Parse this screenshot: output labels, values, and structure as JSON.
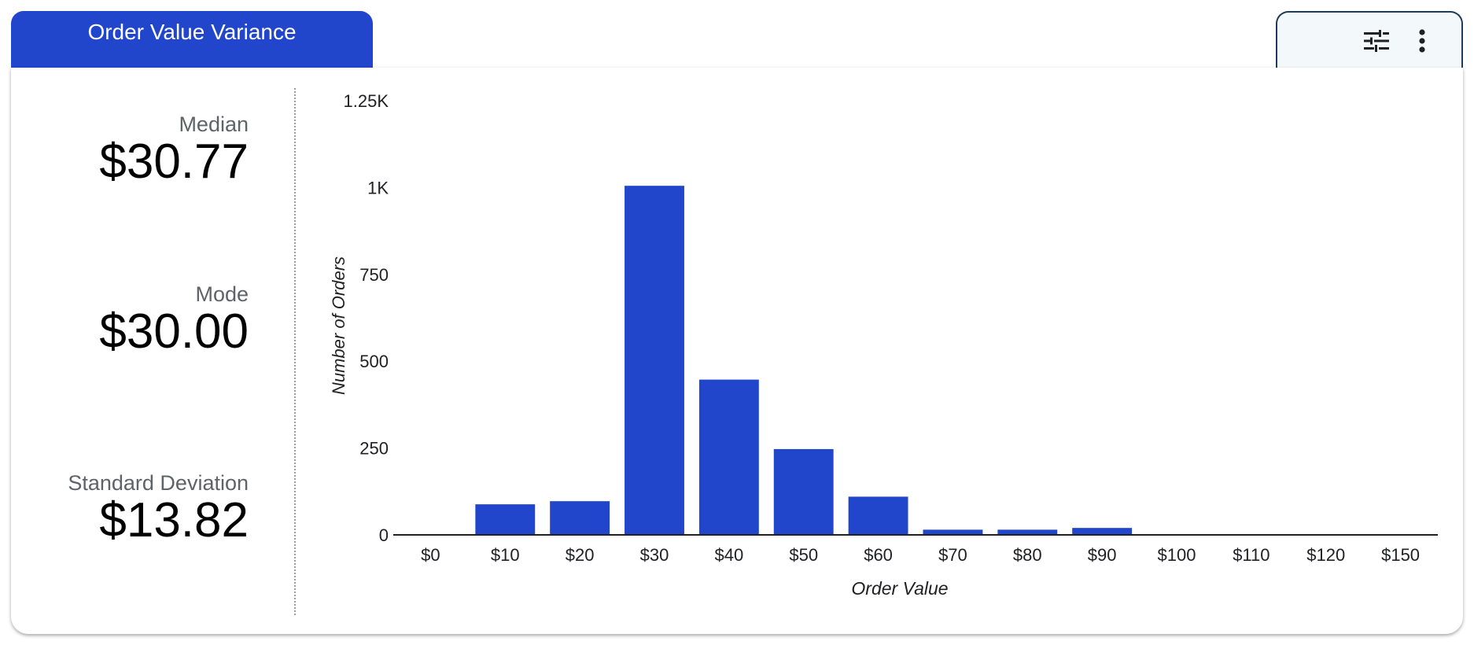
{
  "header": {
    "tab_title": "Order Value Variance",
    "accent_color": "#2146cc",
    "filter_icon": "tune-icon",
    "menu_icon": "more-vert-icon"
  },
  "stats": [
    {
      "label": "Median",
      "value": "$30.77"
    },
    {
      "label": "Mode",
      "value": "$30.00"
    },
    {
      "label": "Standard Deviation",
      "value": "$13.82"
    }
  ],
  "chart_data": {
    "type": "bar",
    "categories": [
      "$0",
      "$10",
      "$20",
      "$30",
      "$40",
      "$50",
      "$60",
      "$70",
      "$80",
      "$90",
      "$100",
      "$110",
      "$120",
      "$150"
    ],
    "values": [
      0,
      88,
      97,
      1005,
      447,
      247,
      110,
      15,
      15,
      20,
      0,
      0,
      0,
      0
    ],
    "title": "",
    "xlabel": "Order Value",
    "ylabel": "Number of Orders",
    "ylim": [
      0,
      1250
    ],
    "yticks": [
      0,
      250,
      500,
      750,
      1000,
      1250
    ],
    "ytick_labels": [
      "0",
      "250",
      "500",
      "750",
      "1K",
      "1.25K"
    ],
    "bar_color": "#2146cc",
    "grid": false,
    "legend": "none"
  }
}
